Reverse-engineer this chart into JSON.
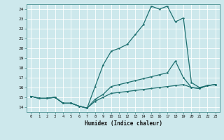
{
  "xlabel": "Humidex (Indice chaleur)",
  "background_color": "#cde8ec",
  "grid_color": "#ffffff",
  "line_color": "#1e7070",
  "xlim": [
    -0.5,
    23.5
  ],
  "ylim": [
    13.5,
    24.5
  ],
  "xticks": [
    0,
    1,
    2,
    3,
    4,
    5,
    6,
    7,
    8,
    9,
    10,
    11,
    12,
    13,
    14,
    15,
    16,
    17,
    18,
    19,
    20,
    21,
    22,
    23
  ],
  "yticks": [
    14,
    15,
    16,
    17,
    18,
    19,
    20,
    21,
    22,
    23,
    24
  ],
  "line1_y": [
    15.1,
    14.9,
    14.9,
    15.0,
    14.4,
    14.4,
    14.1,
    13.9,
    14.6,
    15.0,
    15.4,
    15.5,
    15.6,
    15.7,
    15.8,
    15.9,
    16.0,
    16.1,
    16.2,
    16.3,
    16.0,
    15.9,
    16.2,
    16.3
  ],
  "line2_y": [
    15.1,
    14.9,
    14.9,
    15.0,
    14.4,
    14.4,
    14.1,
    13.9,
    14.8,
    15.3,
    16.1,
    16.3,
    16.5,
    16.7,
    16.9,
    17.1,
    17.3,
    17.5,
    18.7,
    17.0,
    16.0,
    15.9,
    16.2,
    16.3
  ],
  "line3_y": [
    15.1,
    14.9,
    14.9,
    15.0,
    14.4,
    14.4,
    14.1,
    13.9,
    16.1,
    18.3,
    19.7,
    20.0,
    20.4,
    21.4,
    22.4,
    24.3,
    24.0,
    24.3,
    22.7,
    23.1,
    16.5,
    16.0,
    16.2,
    16.3
  ]
}
